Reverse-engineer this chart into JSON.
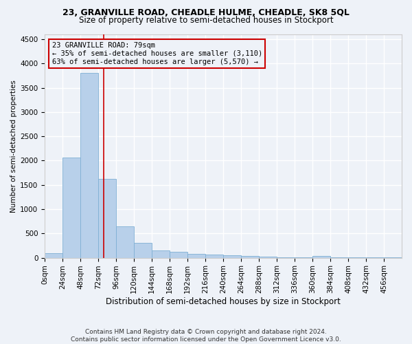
{
  "title": "23, GRANVILLE ROAD, CHEADLE HULME, CHEADLE, SK8 5QL",
  "subtitle": "Size of property relative to semi-detached houses in Stockport",
  "xlabel": "Distribution of semi-detached houses by size in Stockport",
  "ylabel": "Number of semi-detached properties",
  "footer1": "Contains HM Land Registry data © Crown copyright and database right 2024.",
  "footer2": "Contains public sector information licensed under the Open Government Licence v3.0.",
  "annotation_title": "23 GRANVILLE ROAD: 79sqm",
  "annotation_line1": "← 35% of semi-detached houses are smaller (3,110)",
  "annotation_line2": "63% of semi-detached houses are larger (5,570) →",
  "bin_width": 24,
  "bin_starts": [
    0,
    24,
    48,
    72,
    96,
    120,
    144,
    168,
    192,
    216,
    240,
    264,
    288,
    312,
    336,
    360,
    384,
    408,
    432,
    456
  ],
  "bar_heights": [
    100,
    2060,
    3800,
    1620,
    650,
    300,
    155,
    115,
    85,
    65,
    55,
    35,
    25,
    15,
    5,
    40,
    5,
    5,
    5,
    5
  ],
  "bar_color": "#b8d0ea",
  "bar_edge_color": "#7fafd4",
  "vline_color": "#cc0000",
  "vline_x": 79,
  "ylim": [
    0,
    4600
  ],
  "yticks": [
    0,
    500,
    1000,
    1500,
    2000,
    2500,
    3000,
    3500,
    4000,
    4500
  ],
  "annotation_box_edge_color": "#cc0000",
  "background_color": "#eef2f8",
  "grid_color": "#ffffff",
  "title_fontsize": 9,
  "subtitle_fontsize": 8.5,
  "ylabel_fontsize": 7.5,
  "xlabel_fontsize": 8.5,
  "annotation_fontsize": 7.5,
  "tick_fontsize": 7.5,
  "footer_fontsize": 6.5
}
